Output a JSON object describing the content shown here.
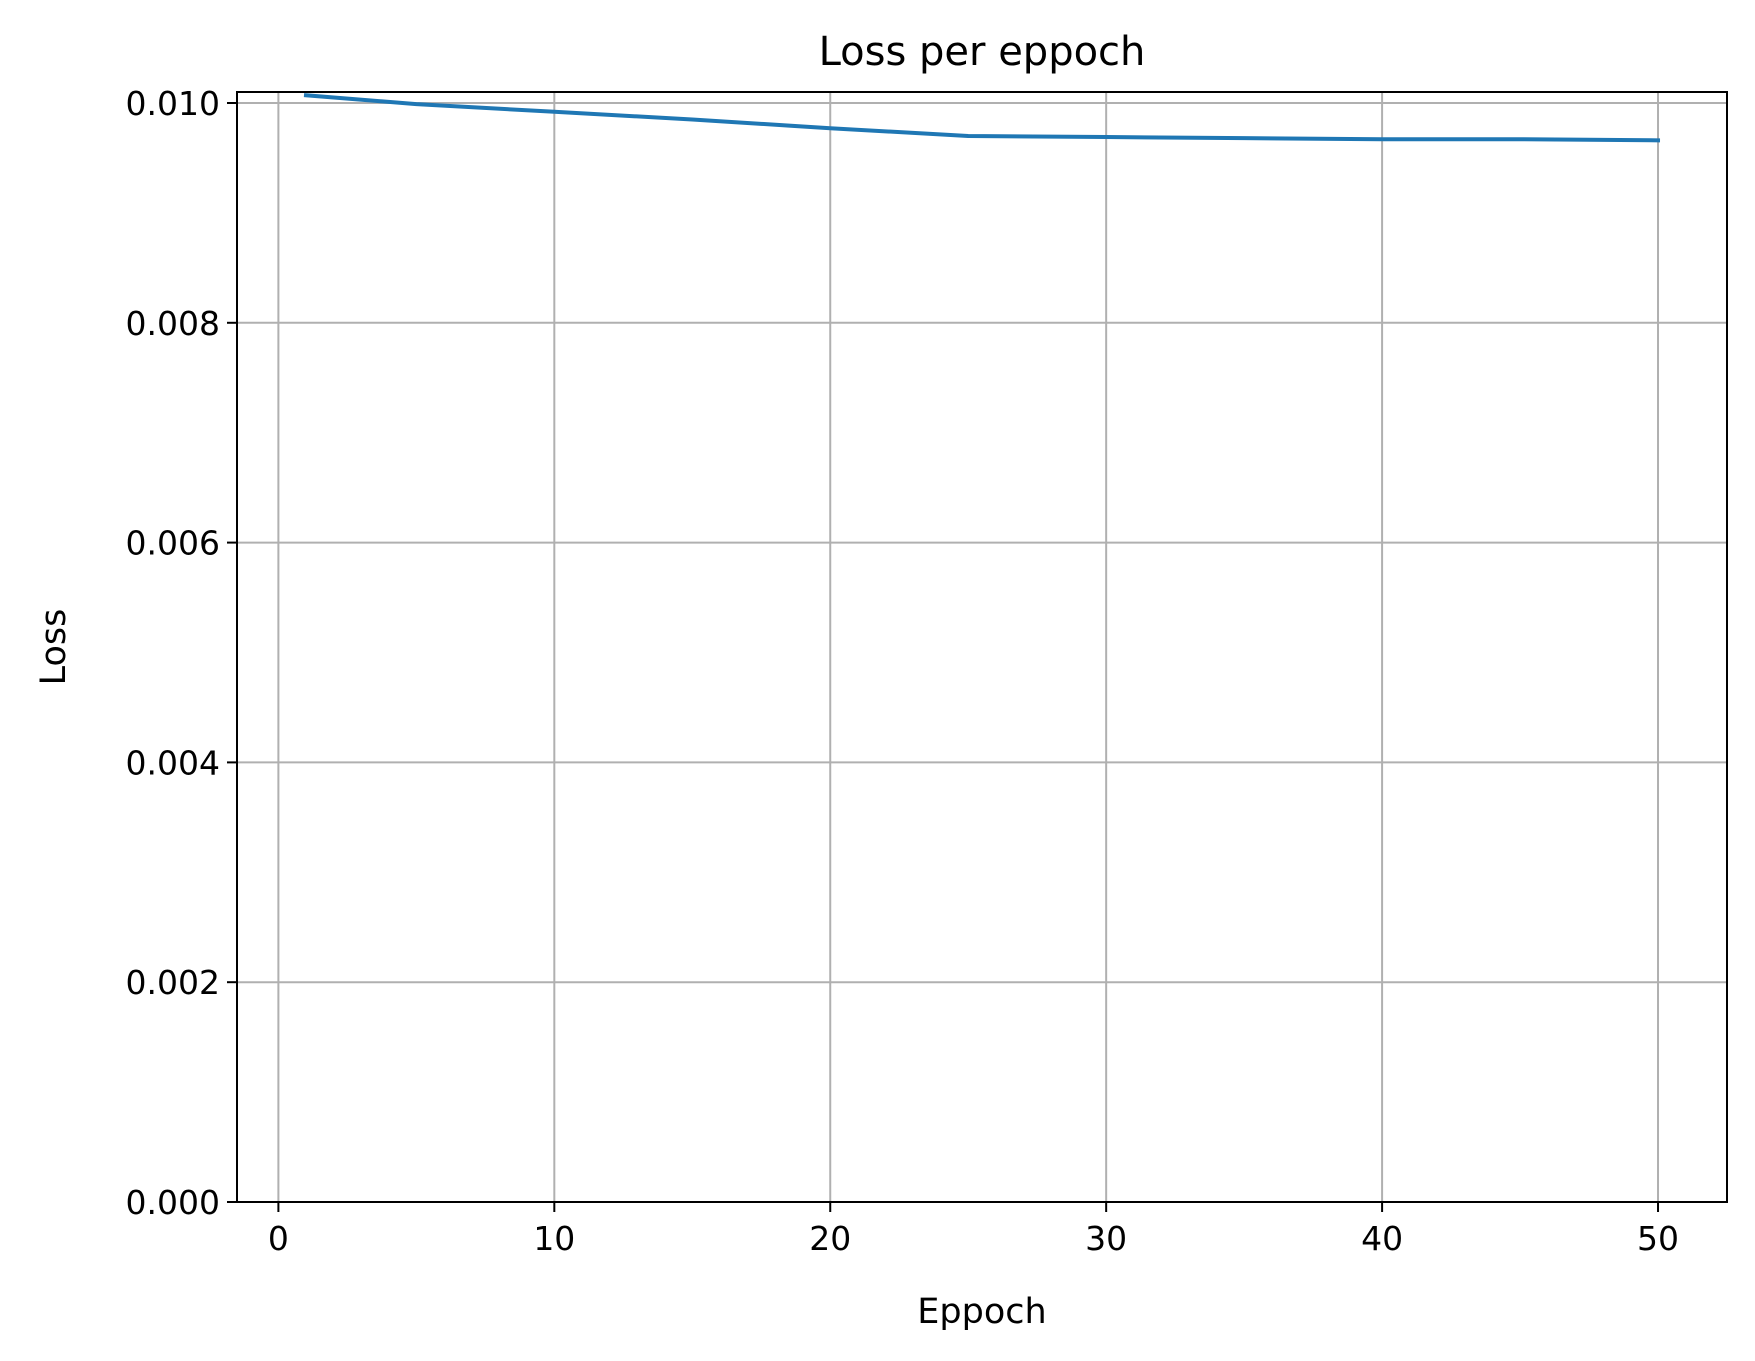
{
  "chart_data": {
    "type": "line",
    "title": "Loss per eppoch",
    "xlabel": "Eppoch",
    "ylabel": "Loss",
    "xlim": [
      -1.5,
      52.5
    ],
    "ylim": [
      0,
      0.0101
    ],
    "grid": true,
    "xticks": [
      0,
      10,
      20,
      30,
      40,
      50
    ],
    "xtick_labels": [
      "0",
      "10",
      "20",
      "30",
      "40",
      "50"
    ],
    "yticks": [
      0,
      0.002,
      0.004,
      0.006,
      0.008,
      0.01
    ],
    "ytick_labels": [
      "0.000",
      "0.002",
      "0.004",
      "0.006",
      "0.008",
      "0.010"
    ],
    "series": [
      {
        "color": "#1f77b4",
        "x": [
          1,
          5,
          10,
          15,
          20,
          25,
          30,
          35,
          40,
          45,
          50
        ],
        "y": [
          0.01007,
          0.00999,
          0.00992,
          0.00985,
          0.00977,
          0.0097,
          0.00969,
          0.00968,
          0.00967,
          0.00967,
          0.00966
        ]
      }
    ]
  }
}
